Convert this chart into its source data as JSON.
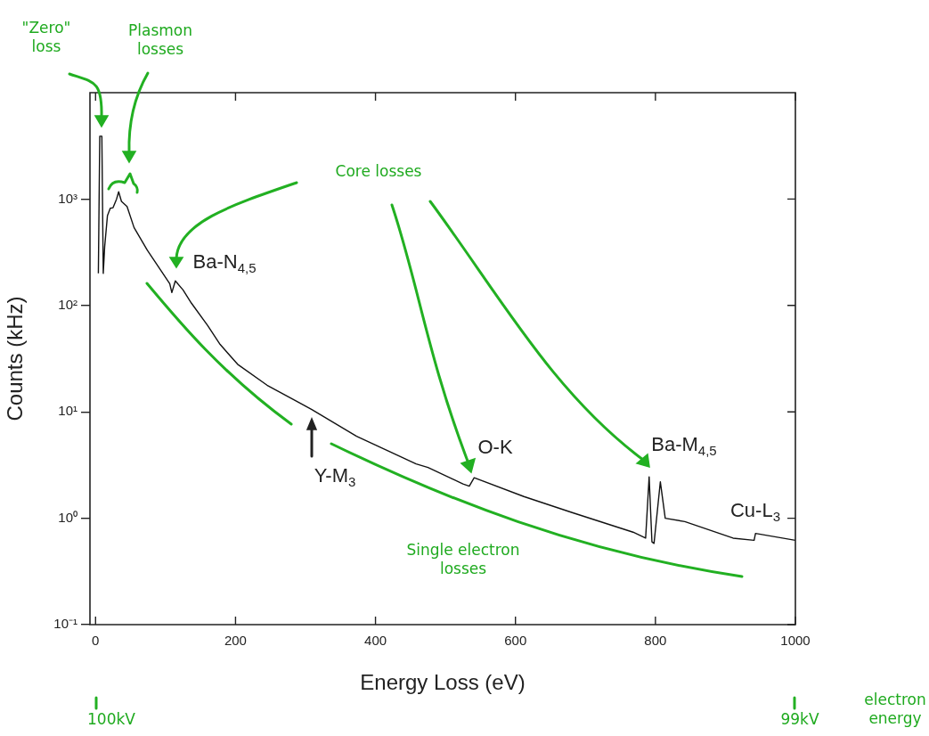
{
  "chart_data": {
    "type": "line",
    "xlabel": "Energy Loss (eV)",
    "ylabel": "Counts (kHz)",
    "x": [
      4,
      6,
      9,
      11,
      13,
      17,
      21,
      25,
      30,
      33,
      37,
      45,
      55,
      74,
      93,
      106,
      109,
      114,
      125,
      137,
      160,
      178,
      203,
      245,
      288,
      309,
      373,
      458,
      475,
      525,
      534,
      541,
      612,
      681,
      768,
      786,
      791,
      795,
      798,
      807,
      814,
      842,
      911,
      941,
      943,
      1000
    ],
    "series": [
      {
        "color": "#111111",
        "values": [
          200,
          3900,
          3900,
          200,
          355,
          700,
          820,
          830,
          1000,
          1170,
          950,
          850,
          540,
          330,
          215,
          160,
          132,
          170,
          140,
          105,
          65,
          43,
          28,
          17.8,
          12.5,
          10.5,
          5.9,
          3.24,
          3.0,
          2.1,
          2.0,
          2.4,
          1.6,
          1.13,
          0.74,
          0.65,
          2.45,
          0.6,
          0.58,
          2.2,
          1.0,
          0.93,
          0.65,
          0.62,
          0.72,
          0.62
        ]
      }
    ],
    "xlim": [
      -8,
      1000
    ],
    "xticks": [
      0,
      200,
      400,
      600,
      800,
      1000
    ],
    "log": true,
    "ylim": [
      0.1,
      10000
    ],
    "yticks": [
      {
        "value": 0.1,
        "label": "10⁻¹"
      },
      {
        "value": 1,
        "label": "10⁰"
      },
      {
        "value": 10,
        "label": "10¹"
      },
      {
        "value": 100,
        "label": "10²"
      },
      {
        "value": 1000,
        "label": "10³"
      }
    ],
    "grid": false,
    "legend": false,
    "marker": "none",
    "line_style": "solid",
    "annotations": [
      "Ba-N$_{4,5}$",
      "Y-M$_{3}$",
      "O-K",
      "Ba-M$_{4,5}$",
      "Cu-L$_{3}$",
      "\"Zero\"\nloss",
      "Plasmon\nlosses",
      "Core losses",
      "Single electron\nlosses",
      "100kV",
      "99kV",
      "electron\nenergy"
    ]
  }
}
